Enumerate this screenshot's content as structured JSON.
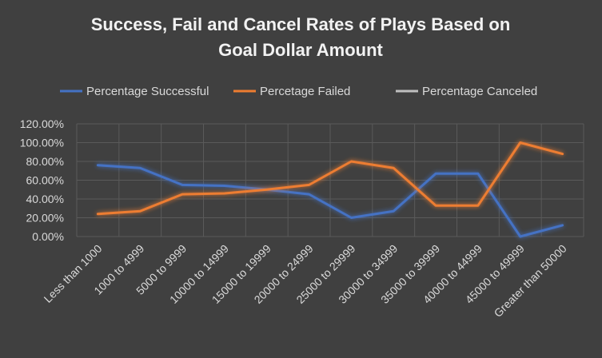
{
  "chart_data": {
    "type": "line",
    "title_line1": "Success, Fail and Cancel Rates of Plays Based on",
    "title_line2": "Goal Dollar Amount",
    "categories": [
      "Less than 1000",
      "1000 to 4999",
      "5000 to 9999",
      "10000 to 14999",
      "15000 to 19999",
      "20000 to 24999",
      "25000 to 29999",
      "30000 to 34999",
      "35000 to 39999",
      "40000 to 44999",
      "45000 to 49999",
      "Greater than 50000"
    ],
    "series": [
      {
        "name": "Percentage Successful",
        "color": "#4472c4",
        "values": [
          76,
          73,
          55,
          54,
          50,
          45,
          20,
          27,
          67,
          67,
          0,
          12
        ]
      },
      {
        "name": "Percetage Failed",
        "color": "#ed7d31",
        "values": [
          24,
          27,
          45,
          46,
          50,
          55,
          80,
          73,
          33,
          33,
          100,
          88
        ]
      },
      {
        "name": "Percentage Canceled",
        "color": "#bfbfbf",
        "values": [
          0,
          0,
          0,
          0,
          0,
          0,
          0,
          0,
          0,
          0,
          0,
          0
        ]
      }
    ],
    "y_ticks": [
      "0.00%",
      "20.00%",
      "40.00%",
      "60.00%",
      "80.00%",
      "100.00%",
      "120.00%"
    ],
    "y_tick_values": [
      0,
      20,
      40,
      60,
      80,
      100,
      120
    ],
    "ylim": [
      0,
      120
    ],
    "grid": true,
    "legend_position": "top"
  }
}
